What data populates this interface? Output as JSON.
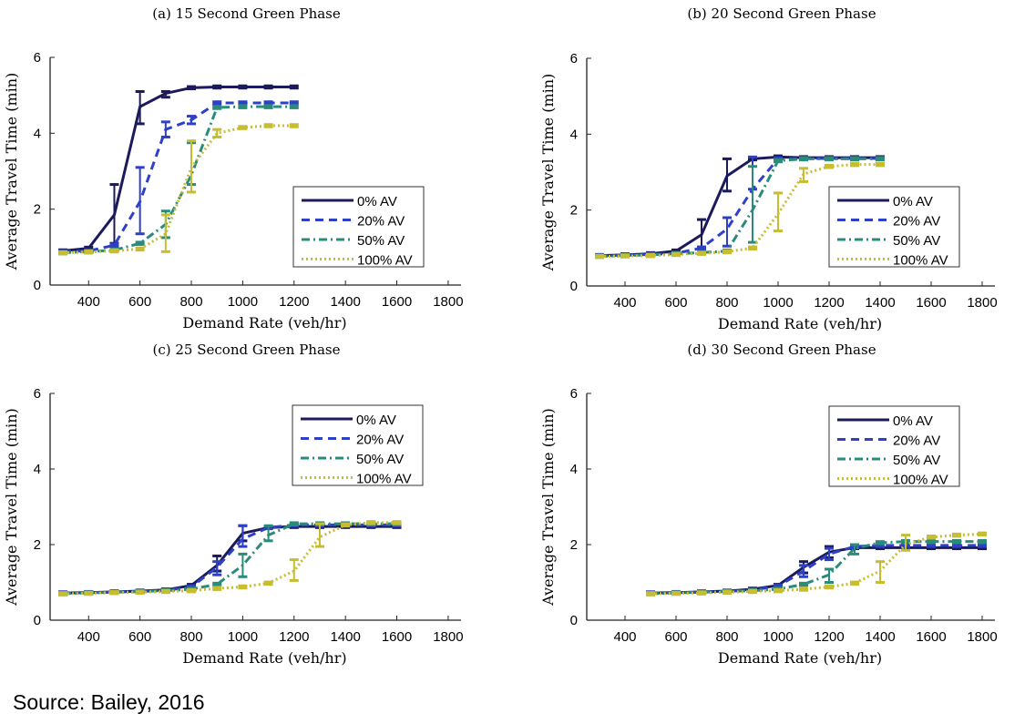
{
  "source": "Source: Bailey, 2016",
  "colors": {
    "0% AV": "#1b1b5c",
    "20% AV": "#2e40c8",
    "50% AV": "#2b8b7b",
    "100% AV": "#c6bd33"
  },
  "chart_data": [
    {
      "type": "line",
      "title": "(a) 15 Second Green Phase",
      "xlabel": "Demand Rate (veh/hr)",
      "ylabel": "Average Travel Time (min)",
      "xlim": [
        250,
        1850
      ],
      "ylim": [
        0,
        6
      ],
      "xticks": [
        400,
        600,
        800,
        1000,
        1200,
        1400,
        1600,
        1800
      ],
      "yticks": [
        0,
        2,
        4,
        6
      ],
      "grid": false,
      "legend": "center-right",
      "x": [
        300,
        400,
        500,
        600,
        700,
        800,
        900,
        1000,
        1100,
        1200
      ],
      "series": [
        {
          "name": "0% AV",
          "style": "solid",
          "values": [
            0.9,
            0.97,
            1.85,
            4.7,
            5.05,
            5.2,
            5.22,
            5.22,
            5.22,
            5.22
          ],
          "errors": {
            "500": [
              1.1,
              2.65
            ],
            "600": [
              4.25,
              5.1
            ],
            "700": [
              4.95,
              5.1
            ]
          }
        },
        {
          "name": "20% AV",
          "style": "dashed",
          "values": [
            0.88,
            0.9,
            1.05,
            2.2,
            4.1,
            4.35,
            4.8,
            4.8,
            4.8,
            4.8
          ],
          "errors": {
            "600": [
              1.35,
              3.1
            ],
            "700": [
              3.9,
              4.3
            ],
            "800": [
              4.25,
              4.45
            ]
          }
        },
        {
          "name": "50% AV",
          "style": "dashdot",
          "values": [
            0.85,
            0.88,
            0.92,
            1.1,
            1.6,
            2.9,
            4.68,
            4.7,
            4.7,
            4.7
          ],
          "errors": {
            "700": [
              1.25,
              1.95
            ],
            "800": [
              2.65,
              3.75
            ]
          }
        },
        {
          "name": "100% AV",
          "style": "dotted",
          "values": [
            0.85,
            0.87,
            0.9,
            0.95,
            1.35,
            3.1,
            4.0,
            4.15,
            4.2,
            4.2
          ],
          "errors": {
            "700": [
              0.88,
              1.85
            ],
            "800": [
              2.45,
              3.8
            ],
            "900": [
              3.9,
              4.1
            ]
          }
        }
      ]
    },
    {
      "type": "line",
      "title": "(b) 20 Second Green Phase",
      "xlabel": "Demand Rate (veh/hr)",
      "ylabel": "Average Travel Time (min)",
      "xlim": [
        250,
        1850
      ],
      "ylim": [
        0,
        6
      ],
      "xticks": [
        400,
        600,
        800,
        1000,
        1200,
        1400,
        1600,
        1800
      ],
      "yticks": [
        0,
        2,
        4,
        6
      ],
      "grid": false,
      "legend": "center-right",
      "x": [
        300,
        400,
        500,
        600,
        700,
        800,
        900,
        1000,
        1100,
        1200,
        1300,
        1400
      ],
      "series": [
        {
          "name": "0% AV",
          "style": "solid",
          "values": [
            0.8,
            0.82,
            0.85,
            0.92,
            1.35,
            2.9,
            3.35,
            3.4,
            3.38,
            3.38,
            3.38,
            3.38
          ],
          "errors": {
            "700": [
              1.0,
              1.75
            ],
            "800": [
              2.5,
              3.35
            ]
          }
        },
        {
          "name": "20% AV",
          "style": "dashed",
          "values": [
            0.8,
            0.81,
            0.83,
            0.86,
            1.0,
            1.5,
            2.55,
            3.35,
            3.36,
            3.36,
            3.36,
            3.36
          ],
          "errors": {
            "800": [
              1.05,
              1.8
            ],
            "900": [
              2.55,
              3.4
            ]
          }
        },
        {
          "name": "50% AV",
          "style": "dashdot",
          "values": [
            0.78,
            0.8,
            0.82,
            0.85,
            0.88,
            0.92,
            2.0,
            3.3,
            3.35,
            3.35,
            3.35,
            3.35
          ],
          "errors": {
            "900": [
              1.15,
              3.15
            ]
          }
        },
        {
          "name": "100% AV",
          "style": "dotted",
          "values": [
            0.78,
            0.79,
            0.8,
            0.83,
            0.86,
            0.9,
            1.0,
            1.9,
            2.95,
            3.15,
            3.2,
            3.2
          ],
          "errors": {
            "1000": [
              1.45,
              2.45
            ],
            "1100": [
              2.75,
              3.1
            ]
          }
        }
      ]
    },
    {
      "type": "line",
      "title": "(c) 25 Second Green Phase",
      "xlabel": "Demand Rate (veh/hr)",
      "ylabel": "Average Travel Time (min)",
      "xlim": [
        250,
        1850
      ],
      "ylim": [
        0,
        6
      ],
      "xticks": [
        400,
        600,
        800,
        1000,
        1200,
        1400,
        1600,
        1800
      ],
      "yticks": [
        0,
        2,
        4,
        6
      ],
      "grid": false,
      "legend": "top-right",
      "x": [
        300,
        400,
        500,
        600,
        700,
        800,
        900,
        1000,
        1100,
        1200,
        1300,
        1400,
        1500,
        1600
      ],
      "series": [
        {
          "name": "0% AV",
          "style": "solid",
          "values": [
            0.72,
            0.73,
            0.75,
            0.77,
            0.8,
            0.92,
            1.45,
            2.3,
            2.45,
            2.48,
            2.48,
            2.48,
            2.48,
            2.48
          ],
          "errors": {
            "900": [
              1.3,
              1.7
            ],
            "1000": [
              2.1,
              2.5
            ]
          }
        },
        {
          "name": "20% AV",
          "style": "dashed",
          "values": [
            0.72,
            0.73,
            0.74,
            0.76,
            0.79,
            0.88,
            1.4,
            2.15,
            2.45,
            2.52,
            2.52,
            2.52,
            2.52,
            2.52
          ],
          "errors": {
            "900": [
              1.2,
              1.55
            ],
            "1000": [
              1.95,
              2.5
            ]
          }
        },
        {
          "name": "50% AV",
          "style": "dashdot",
          "values": [
            0.7,
            0.72,
            0.74,
            0.76,
            0.78,
            0.82,
            0.95,
            1.45,
            2.25,
            2.55,
            2.55,
            2.55,
            2.55,
            2.55
          ],
          "errors": {
            "1000": [
              1.15,
              1.75
            ],
            "1100": [
              2.1,
              2.5
            ]
          }
        },
        {
          "name": "100% AV",
          "style": "dotted",
          "values": [
            0.7,
            0.71,
            0.73,
            0.74,
            0.76,
            0.78,
            0.84,
            0.88,
            0.98,
            1.3,
            2.2,
            2.52,
            2.58,
            2.58
          ],
          "errors": {
            "1200": [
              1.05,
              1.6
            ],
            "1300": [
              1.95,
              2.55
            ]
          }
        }
      ]
    },
    {
      "type": "line",
      "title": "(d) 30 Second Green Phase",
      "xlabel": "Demand Rate (veh/hr)",
      "ylabel": "Average Travel Time (min)",
      "xlim": [
        250,
        1850
      ],
      "ylim": [
        0,
        6
      ],
      "xticks": [
        400,
        600,
        800,
        1000,
        1200,
        1400,
        1600,
        1800
      ],
      "yticks": [
        0,
        2,
        4,
        6
      ],
      "grid": false,
      "legend": "top-right",
      "x": [
        500,
        600,
        700,
        800,
        900,
        1000,
        1100,
        1200,
        1300,
        1400,
        1500,
        1600,
        1700,
        1800
      ],
      "series": [
        {
          "name": "0% AV",
          "style": "solid",
          "values": [
            0.72,
            0.73,
            0.75,
            0.77,
            0.82,
            0.92,
            1.4,
            1.8,
            1.92,
            1.92,
            1.92,
            1.92,
            1.92,
            1.92
          ],
          "errors": {
            "1100": [
              1.25,
              1.55
            ],
            "1200": [
              1.65,
              1.95
            ]
          }
        },
        {
          "name": "20% AV",
          "style": "dashed",
          "values": [
            0.72,
            0.73,
            0.74,
            0.76,
            0.8,
            0.9,
            1.3,
            1.75,
            1.95,
            1.98,
            1.98,
            1.98,
            1.98,
            1.98
          ],
          "errors": {
            "1100": [
              1.15,
              1.45
            ],
            "1200": [
              1.6,
              1.9
            ]
          }
        },
        {
          "name": "50% AV",
          "style": "dashdot",
          "values": [
            0.7,
            0.72,
            0.74,
            0.76,
            0.78,
            0.82,
            0.95,
            1.2,
            1.9,
            2.05,
            2.08,
            2.08,
            2.08,
            2.08
          ],
          "errors": {
            "1200": [
              1.0,
              1.35
            ],
            "1300": [
              1.75,
              2.0
            ]
          }
        },
        {
          "name": "100% AV",
          "style": "dotted",
          "values": [
            0.7,
            0.71,
            0.72,
            0.74,
            0.76,
            0.78,
            0.82,
            0.88,
            0.98,
            1.3,
            2.0,
            2.2,
            2.25,
            2.28
          ],
          "errors": {
            "1400": [
              1.0,
              1.55
            ],
            "1500": [
              1.85,
              2.25
            ]
          }
        }
      ]
    }
  ]
}
